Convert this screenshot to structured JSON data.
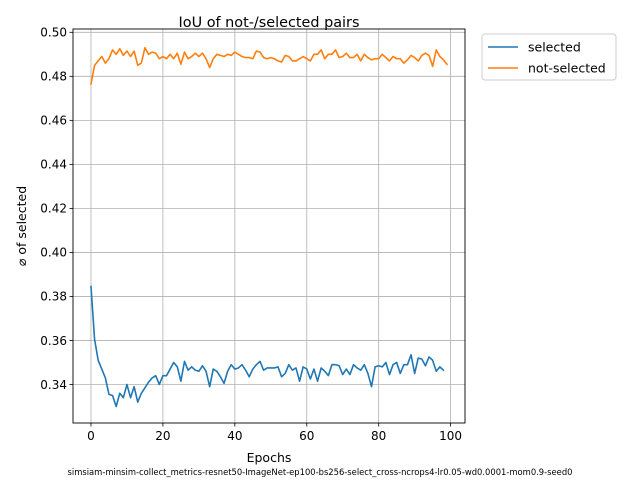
{
  "chart_data": {
    "type": "line",
    "title": "IoU of not-/selected pairs",
    "xlabel": "Epochs",
    "ylabel": "⌀ of selected",
    "footnote": "simsiam-minsim-collect_metrics-resnet50-ImageNet-ep100-bs256-select_cross-ncrops4-lr0.05-wd0.0001-mom0.9-seed0",
    "xlim": [
      -5,
      104
    ],
    "ylim": [
      0.3225,
      0.5015
    ],
    "xticks": [
      0,
      20,
      40,
      60,
      80,
      100
    ],
    "yticks": [
      0.34,
      0.36,
      0.38,
      0.4,
      0.42,
      0.44,
      0.46,
      0.48,
      0.5
    ],
    "ytick_labels": [
      "0.34",
      "0.36",
      "0.38",
      "0.40",
      "0.42",
      "0.44",
      "0.46",
      "0.48",
      "0.50"
    ],
    "grid": true,
    "legend_position": "outside-upper-right",
    "series": [
      {
        "name": "selected",
        "color": "#1f77b4",
        "values": [
          0.3845,
          0.3605,
          0.351,
          0.347,
          0.343,
          0.3355,
          0.335,
          0.33,
          0.336,
          0.334,
          0.34,
          0.334,
          0.339,
          0.332,
          0.336,
          0.3385,
          0.341,
          0.343,
          0.344,
          0.34,
          0.344,
          0.344,
          0.347,
          0.35,
          0.348,
          0.3415,
          0.3505,
          0.3465,
          0.348,
          0.3465,
          0.346,
          0.3485,
          0.346,
          0.339,
          0.347,
          0.346,
          0.3435,
          0.3405,
          0.346,
          0.349,
          0.347,
          0.3475,
          0.349,
          0.3465,
          0.3435,
          0.347,
          0.349,
          0.3505,
          0.3465,
          0.3475,
          0.3475,
          0.3475,
          0.348,
          0.3435,
          0.345,
          0.349,
          0.3465,
          0.3475,
          0.3415,
          0.348,
          0.347,
          0.3425,
          0.347,
          0.3415,
          0.3475,
          0.346,
          0.344,
          0.349,
          0.349,
          0.3485,
          0.3445,
          0.347,
          0.3445,
          0.349,
          0.3475,
          0.3465,
          0.349,
          0.345,
          0.339,
          0.348,
          0.3485,
          0.348,
          0.35,
          0.3445,
          0.349,
          0.35,
          0.345,
          0.349,
          0.349,
          0.3535,
          0.345,
          0.352,
          0.3515,
          0.3485,
          0.3525,
          0.351,
          0.346,
          0.348,
          0.3465
        ]
      },
      {
        "name": "not-selected",
        "color": "#ff7f0e",
        "values": [
          0.4765,
          0.485,
          0.487,
          0.489,
          0.486,
          0.488,
          0.492,
          0.49,
          0.4925,
          0.4895,
          0.4915,
          0.489,
          0.4915,
          0.485,
          0.486,
          0.493,
          0.49,
          0.491,
          0.4905,
          0.488,
          0.489,
          0.488,
          0.49,
          0.488,
          0.4905,
          0.4855,
          0.491,
          0.488,
          0.489,
          0.4905,
          0.489,
          0.4905,
          0.488,
          0.484,
          0.488,
          0.49,
          0.4895,
          0.489,
          0.49,
          0.4895,
          0.491,
          0.49,
          0.489,
          0.4885,
          0.4885,
          0.488,
          0.4915,
          0.491,
          0.4885,
          0.488,
          0.4885,
          0.488,
          0.487,
          0.4865,
          0.4895,
          0.489,
          0.487,
          0.487,
          0.488,
          0.489,
          0.488,
          0.487,
          0.49,
          0.49,
          0.492,
          0.488,
          0.49,
          0.49,
          0.492,
          0.4885,
          0.489,
          0.4905,
          0.4885,
          0.4885,
          0.49,
          0.487,
          0.49,
          0.4885,
          0.4875,
          0.488,
          0.488,
          0.49,
          0.4885,
          0.487,
          0.489,
          0.488,
          0.488,
          0.486,
          0.4875,
          0.4895,
          0.4885,
          0.487,
          0.4895,
          0.4905,
          0.4895,
          0.4845,
          0.492,
          0.489,
          0.4875,
          0.4855
        ]
      }
    ]
  }
}
